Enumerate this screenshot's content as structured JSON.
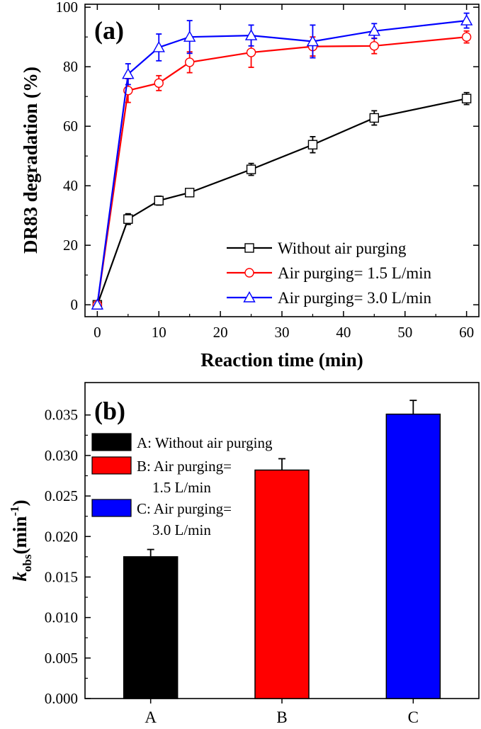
{
  "chart_data": [
    {
      "type": "line",
      "panel_label": "(a)",
      "xlabel": "Reaction time (min)",
      "ylabel": "DR83 degradation (%)",
      "xlim": [
        -2,
        62
      ],
      "ylim": [
        -4,
        101
      ],
      "xticks": [
        0,
        10,
        20,
        30,
        40,
        50,
        60
      ],
      "yticks": [
        0,
        20,
        40,
        60,
        80,
        100
      ],
      "x": [
        0,
        5,
        10,
        15,
        25,
        35,
        45,
        60
      ],
      "legend_position": "bottom-right",
      "series": [
        {
          "name": "Without air purging",
          "color": "#000000",
          "marker": "square",
          "values": [
            0,
            28.8,
            35.0,
            37.7,
            45.5,
            53.8,
            62.8,
            69.3
          ],
          "errors": [
            0.5,
            1.8,
            1.5,
            1.3,
            2.0,
            2.7,
            2.4,
            2.0
          ]
        },
        {
          "name": "Air purging= 1.5 L/min",
          "color": "#ff0000",
          "marker": "circle",
          "values": [
            0,
            72.0,
            74.5,
            81.5,
            84.8,
            86.8,
            87.0,
            90.0
          ],
          "errors": [
            0.5,
            4.0,
            2.5,
            3.5,
            5.0,
            3.2,
            2.6,
            2.0
          ]
        },
        {
          "name": "Air purging= 3.0 L/min",
          "color": "#0000ff",
          "marker": "triangle",
          "values": [
            0,
            77.5,
            86.5,
            90.0,
            90.5,
            88.5,
            92.0,
            95.5
          ],
          "errors": [
            0.5,
            3.5,
            4.5,
            5.5,
            3.5,
            5.5,
            2.5,
            2.5
          ]
        }
      ]
    },
    {
      "type": "bar",
      "panel_label": "(b)",
      "xlabel": "",
      "ylabel_main": "k",
      "ylabel_sub": "obs",
      "ylabel_unit": "(min",
      "ylabel_sup": "-1",
      "ylabel_close": ")",
      "ylim": [
        0,
        0.039
      ],
      "yticks": [
        "0.000",
        "0.005",
        "0.010",
        "0.015",
        "0.020",
        "0.025",
        "0.030",
        "0.035"
      ],
      "categories": [
        "A",
        "B",
        "C"
      ],
      "values": [
        0.0175,
        0.0282,
        0.0351
      ],
      "errors": [
        0.0009,
        0.0014,
        0.0017
      ],
      "colors": [
        "#000000",
        "#ff0000",
        "#0000ff"
      ],
      "legend_position": "top-left",
      "legend": [
        {
          "lines": [
            "A: Without air purging"
          ],
          "color": "#000000"
        },
        {
          "lines": [
            "B: Air purging=",
            "1.5 L/min"
          ],
          "color": "#ff0000"
        },
        {
          "lines": [
            "C: Air purging=",
            "3.0 L/min"
          ],
          "color": "#0000ff"
        }
      ]
    }
  ]
}
